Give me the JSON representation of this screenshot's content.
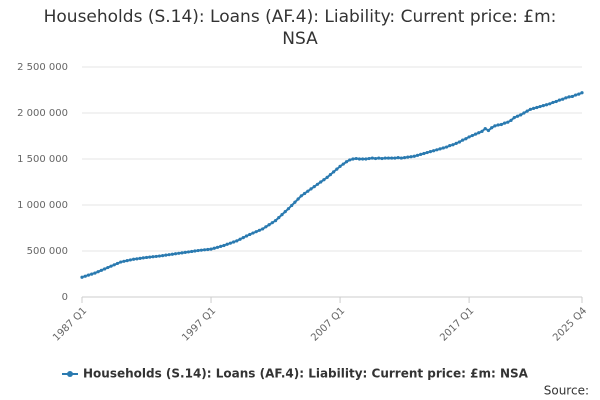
{
  "chart_data": {
    "type": "line",
    "title": "Households (S.14): Loans (AF.4): Liability: Current price: £m: NSA",
    "source": "Source:",
    "categories": [
      "1987 Q1",
      null,
      null,
      null,
      null,
      null,
      null,
      null,
      null,
      null,
      null,
      null,
      null,
      null,
      null,
      null,
      null,
      null,
      null,
      null,
      null,
      null,
      null,
      null,
      null,
      null,
      null,
      null,
      null,
      null,
      null,
      null,
      null,
      null,
      null,
      null,
      null,
      null,
      null,
      null,
      "1997 Q1",
      null,
      null,
      null,
      null,
      null,
      null,
      null,
      null,
      null,
      null,
      null,
      null,
      null,
      null,
      null,
      null,
      null,
      null,
      null,
      null,
      null,
      null,
      null,
      null,
      null,
      null,
      null,
      null,
      null,
      null,
      null,
      null,
      null,
      null,
      null,
      null,
      null,
      null,
      null,
      "2007 Q1",
      null,
      null,
      null,
      null,
      null,
      null,
      null,
      null,
      null,
      null,
      null,
      null,
      null,
      null,
      null,
      null,
      null,
      null,
      null,
      null,
      null,
      null,
      null,
      null,
      null,
      null,
      null,
      null,
      null,
      null,
      null,
      null,
      null,
      null,
      null,
      null,
      null,
      null,
      null,
      "2017 Q1",
      null,
      null,
      null,
      null,
      null,
      null,
      null,
      null,
      null,
      null,
      null,
      null,
      null,
      null,
      null,
      null,
      null,
      null,
      null,
      null,
      null,
      null,
      null,
      null,
      null,
      null,
      null,
      null,
      null,
      null,
      null,
      null,
      null,
      null,
      "2025 Q4"
    ],
    "series": [
      {
        "name": "Households (S.14): Loans (AF.4): Liability: Current price: £m: NSA",
        "color": "#2a7ab0",
        "values": [
          215000,
          226000,
          238000,
          249000,
          260000,
          275000,
          290000,
          305000,
          320000,
          335000,
          350000,
          365000,
          380000,
          388000,
          395000,
          403000,
          410000,
          415000,
          420000,
          425000,
          430000,
          434000,
          438000,
          441000,
          445000,
          450000,
          455000,
          460000,
          465000,
          470000,
          475000,
          480000,
          485000,
          490000,
          495000,
          500000,
          505000,
          509000,
          513000,
          516000,
          520000,
          530000,
          540000,
          550000,
          560000,
          573000,
          585000,
          598000,
          610000,
          628000,
          645000,
          663000,
          680000,
          695000,
          710000,
          725000,
          740000,
          763000,
          785000,
          808000,
          830000,
          863000,
          895000,
          928000,
          960000,
          995000,
          1030000,
          1065000,
          1100000,
          1125000,
          1150000,
          1175000,
          1200000,
          1225000,
          1250000,
          1275000,
          1300000,
          1330000,
          1360000,
          1390000,
          1420000,
          1445000,
          1470000,
          1490000,
          1500000,
          1505000,
          1500000,
          1500000,
          1500000,
          1505000,
          1510000,
          1505000,
          1510000,
          1505000,
          1510000,
          1510000,
          1510000,
          1510000,
          1515000,
          1510000,
          1515000,
          1520000,
          1525000,
          1530000,
          1540000,
          1550000,
          1560000,
          1570000,
          1580000,
          1590000,
          1600000,
          1610000,
          1620000,
          1630000,
          1645000,
          1655000,
          1670000,
          1685000,
          1705000,
          1720000,
          1740000,
          1755000,
          1770000,
          1785000,
          1800000,
          1830000,
          1810000,
          1840000,
          1860000,
          1870000,
          1875000,
          1890000,
          1900000,
          1920000,
          1950000,
          1965000,
          1980000,
          2000000,
          2020000,
          2040000,
          2050000,
          2060000,
          2070000,
          2080000,
          2090000,
          2100000,
          2115000,
          2125000,
          2140000,
          2150000,
          2165000,
          2175000,
          2180000,
          2195000,
          2205000,
          2220000
        ]
      }
    ],
    "ylim": [
      0,
      2500000
    ],
    "yticks": [
      0,
      {
        "value": 500000,
        "label": "500 000"
      },
      {
        "value": 1000000,
        "label": "1 000 000"
      },
      {
        "value": 1500000,
        "label": "1 500 000"
      },
      {
        "value": 2000000,
        "label": "2 000 000"
      },
      {
        "value": 2500000,
        "label": "2 500 000"
      }
    ],
    "grid": true
  }
}
